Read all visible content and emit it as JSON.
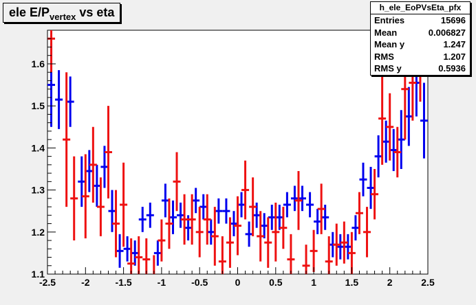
{
  "title": {
    "main": "ele E/P",
    "sub": "vertex",
    "suffix": " vs eta"
  },
  "stats": {
    "name": "h_ele_EoPVsEta_pfx",
    "rows": [
      {
        "label": "Entries",
        "value": "15696"
      },
      {
        "label": "Mean",
        "value": "0.006827"
      },
      {
        "label": "Mean y",
        "value": "1.247"
      },
      {
        "label": "RMS",
        "value": "1.207"
      },
      {
        "label": "RMS y",
        "value": "0.5936"
      }
    ]
  },
  "chart_data": {
    "type": "scatter",
    "title": "ele E/Pvertex vs eta",
    "xlabel": "",
    "ylabel": "",
    "xlim": [
      -2.5,
      2.5
    ],
    "ylim": [
      1.1,
      1.68
    ],
    "xticks": [
      -2.5,
      -2,
      -1.5,
      -1,
      -0.5,
      0,
      0.5,
      1,
      1.5,
      2,
      2.5
    ],
    "yticks": [
      1.1,
      1.2,
      1.3,
      1.4,
      1.5,
      1.6
    ],
    "grid": false,
    "series": [
      {
        "color": "#0000ee",
        "points": [
          [
            -2.45,
            1.55,
            0.1
          ],
          [
            -2.35,
            1.515,
            0.07
          ],
          [
            -2.2,
            1.51,
            0.06
          ],
          [
            -2.05,
            1.32,
            0.06
          ],
          [
            -1.95,
            1.345,
            0.05
          ],
          [
            -1.85,
            1.31,
            0.05
          ],
          [
            -1.75,
            1.355,
            0.05
          ],
          [
            -1.65,
            1.25,
            0.05
          ],
          [
            -1.55,
            1.155,
            0.04
          ],
          [
            -1.45,
            1.16,
            0.03
          ],
          [
            -1.35,
            1.15,
            0.03
          ],
          [
            -1.25,
            1.23,
            0.03
          ],
          [
            -1.15,
            1.24,
            0.03
          ],
          [
            -1.05,
            1.15,
            0.03
          ],
          [
            -0.95,
            1.275,
            0.04
          ],
          [
            -0.85,
            1.235,
            0.04
          ],
          [
            -0.75,
            1.24,
            0.03
          ],
          [
            -0.65,
            1.21,
            0.03
          ],
          [
            -0.55,
            1.275,
            0.03
          ],
          [
            -0.45,
            1.26,
            0.03
          ],
          [
            -0.35,
            1.2,
            0.03
          ],
          [
            -0.25,
            1.25,
            0.03
          ],
          [
            -0.15,
            1.25,
            0.03
          ],
          [
            -0.05,
            1.22,
            0.03
          ],
          [
            0.05,
            1.265,
            0.03
          ],
          [
            0.15,
            1.195,
            0.03
          ],
          [
            0.25,
            1.24,
            0.03
          ],
          [
            0.35,
            1.215,
            0.03
          ],
          [
            0.45,
            1.235,
            0.03
          ],
          [
            0.55,
            1.235,
            0.03
          ],
          [
            0.65,
            1.265,
            0.03
          ],
          [
            0.75,
            1.28,
            0.03
          ],
          [
            0.85,
            1.28,
            0.03
          ],
          [
            0.95,
            1.265,
            0.03
          ],
          [
            1.05,
            1.225,
            0.03
          ],
          [
            1.15,
            1.235,
            0.03
          ],
          [
            1.25,
            1.17,
            0.03
          ],
          [
            1.35,
            1.165,
            0.03
          ],
          [
            1.45,
            1.165,
            0.03
          ],
          [
            1.55,
            1.21,
            0.03
          ],
          [
            1.65,
            1.325,
            0.04
          ],
          [
            1.75,
            1.305,
            0.05
          ],
          [
            1.85,
            1.38,
            0.05
          ],
          [
            1.95,
            1.415,
            0.05
          ],
          [
            2.05,
            1.395,
            0.05
          ],
          [
            2.15,
            1.42,
            0.07
          ],
          [
            2.25,
            1.475,
            0.07
          ],
          [
            2.35,
            1.555,
            0.08
          ],
          [
            2.45,
            1.465,
            0.09
          ]
        ]
      },
      {
        "color": "#ee1111",
        "points": [
          [
            -2.45,
            1.66,
            0.08
          ],
          [
            -2.25,
            1.42,
            0.16
          ],
          [
            -2.15,
            1.28,
            0.1
          ],
          [
            -2.0,
            1.285,
            0.1
          ],
          [
            -1.9,
            1.36,
            0.09
          ],
          [
            -1.8,
            1.26,
            0.07
          ],
          [
            -1.7,
            1.39,
            0.11
          ],
          [
            -1.6,
            1.22,
            0.08
          ],
          [
            -1.5,
            1.265,
            0.1
          ],
          [
            -1.4,
            1.125,
            0.06
          ],
          [
            -1.3,
            1.14,
            0.05
          ],
          [
            -1.2,
            1.135,
            0.05
          ],
          [
            -1.1,
            1.095,
            0.05
          ],
          [
            -1.0,
            1.18,
            0.05
          ],
          [
            -0.9,
            1.22,
            0.06
          ],
          [
            -0.8,
            1.32,
            0.07
          ],
          [
            -0.7,
            1.23,
            0.06
          ],
          [
            -0.6,
            1.23,
            0.06
          ],
          [
            -0.5,
            1.2,
            0.06
          ],
          [
            -0.4,
            1.23,
            0.06
          ],
          [
            -0.3,
            1.19,
            0.07
          ],
          [
            -0.2,
            1.13,
            0.06
          ],
          [
            -0.1,
            1.175,
            0.06
          ],
          [
            0.0,
            1.215,
            0.07
          ],
          [
            0.1,
            1.3,
            0.07
          ],
          [
            0.2,
            1.26,
            0.07
          ],
          [
            0.3,
            1.19,
            0.06
          ],
          [
            0.4,
            1.175,
            0.06
          ],
          [
            0.5,
            1.2,
            0.07
          ],
          [
            0.6,
            1.21,
            0.05
          ],
          [
            0.7,
            1.135,
            0.06
          ],
          [
            0.8,
            1.275,
            0.07
          ],
          [
            0.9,
            1.12,
            0.05
          ],
          [
            1.0,
            1.155,
            0.05
          ],
          [
            1.1,
            1.255,
            0.06
          ],
          [
            1.2,
            1.13,
            0.06
          ],
          [
            1.3,
            1.17,
            0.05
          ],
          [
            1.4,
            1.175,
            0.05
          ],
          [
            1.5,
            1.15,
            0.05
          ],
          [
            1.6,
            1.245,
            0.05
          ],
          [
            1.7,
            1.2,
            0.06
          ],
          [
            1.8,
            1.29,
            0.06
          ],
          [
            1.9,
            1.47,
            0.11
          ],
          [
            2.0,
            1.45,
            0.08
          ],
          [
            2.1,
            1.39,
            0.06
          ],
          [
            2.2,
            1.54,
            0.12
          ],
          [
            2.3,
            1.555,
            0.09
          ],
          [
            2.4,
            1.59,
            0.08
          ]
        ]
      }
    ]
  }
}
